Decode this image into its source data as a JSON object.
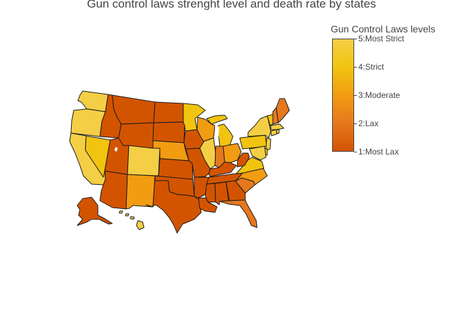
{
  "title": "Gun control laws strenght level and death rate by states",
  "legend": {
    "title": "Gun Control Laws levels",
    "ticks": [
      "5:Most Strict",
      "4:Strict",
      "3:Moderate",
      "2:Lax",
      "1:Most Lax"
    ]
  },
  "colorscale": {
    "1": "#d35400",
    "2": "#e6781e",
    "3": "#f29c12",
    "4": "#f1c40f",
    "5": "#f4cf45"
  },
  "border_color": "#1a1a1a",
  "chart_data": {
    "type": "choropleth",
    "scope": "usa",
    "colorbar_range": [
      1,
      5
    ],
    "states": {
      "WA": 5,
      "OR": 5,
      "CA": 5,
      "NV": 4,
      "ID": 1,
      "MT": 1,
      "WY": 1,
      "UT": 1,
      "AZ": 1,
      "CO": 5,
      "NM": 3,
      "ND": 1,
      "SD": 1,
      "NE": 3,
      "KS": 1,
      "OK": 1,
      "TX": 1,
      "MN": 4,
      "IA": 1,
      "MO": 1,
      "AR": 1,
      "LA": 1,
      "WI": 3,
      "IL": 5,
      "MI": 4,
      "IN": 2,
      "OH": 3,
      "KY": 1,
      "TN": 1,
      "MS": 1,
      "AL": 1,
      "GA": 1,
      "FL": 2,
      "SC": 2,
      "NC": 3,
      "VA": 4,
      "WV": 1,
      "PA": 4,
      "NY": 5,
      "NJ": 5,
      "DE": 4,
      "MD": 5,
      "CT": 5,
      "RI": 5,
      "MA": 5,
      "VT": 4,
      "NH": 2,
      "ME": 2,
      "AK": 1,
      "HI": 5
    }
  }
}
